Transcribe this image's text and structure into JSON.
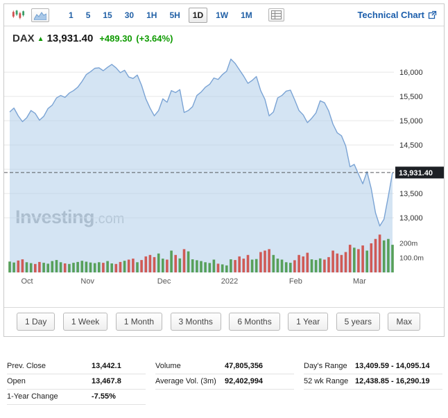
{
  "colors": {
    "positive": "#0e9a00",
    "link": "#1a5dab"
  },
  "toolbar": {
    "intervals": [
      "1",
      "5",
      "15",
      "30",
      "1H",
      "5H",
      "1D",
      "1W",
      "1M"
    ],
    "selected_interval": "1D",
    "technical_chart_label": "Technical Chart"
  },
  "header": {
    "symbol": "DAX",
    "price": "13,931.40",
    "change": "+489.30",
    "change_pct": "(+3.64%)"
  },
  "watermark": {
    "name": "Investing",
    "tld": ".com"
  },
  "ranges": [
    "1 Day",
    "1 Week",
    "1 Month",
    "3 Months",
    "6 Months",
    "1 Year",
    "5 years",
    "Max"
  ],
  "stats": {
    "col1": [
      {
        "label": "Prev. Close",
        "value": "13,442.1"
      },
      {
        "label": "Open",
        "value": "13,467.8"
      },
      {
        "label": "1-Year Change",
        "value": "-7.55%"
      }
    ],
    "col2": [
      {
        "label": "Volume",
        "value": "47,805,356"
      },
      {
        "label": "Average Vol. (3m)",
        "value": "92,402,994"
      }
    ],
    "col3": [
      {
        "label": "Day's Range",
        "value": "13,409.59 - 14,095.14"
      },
      {
        "label": "52 wk Range",
        "value": "12,438.85 - 16,290.19"
      }
    ]
  },
  "chart_data": {
    "type": "area",
    "symbol": "DAX",
    "x_labels": [
      {
        "i": 4,
        "label": "Oct"
      },
      {
        "i": 18,
        "label": "Nov"
      },
      {
        "i": 36,
        "label": "Dec"
      },
      {
        "i": 51,
        "label": "2022"
      },
      {
        "i": 67,
        "label": "Feb"
      },
      {
        "i": 82,
        "label": "Mar"
      }
    ],
    "y_ticks": [
      {
        "v": 16000,
        "label": "16,000"
      },
      {
        "v": 15500,
        "label": "15,500"
      },
      {
        "v": 15000,
        "label": "15,000"
      },
      {
        "v": 14500,
        "label": "14,500"
      },
      {
        "v": 14000,
        "label": null
      },
      {
        "v": 13500,
        "label": "13,500"
      },
      {
        "v": 13000,
        "label": "13,000"
      }
    ],
    "y_range_visible": [
      12650,
      16400
    ],
    "last_price": {
      "value": 13931.4,
      "label": "13,931.40"
    },
    "volume_ticks": [
      {
        "v": 200,
        "label": "200m"
      },
      {
        "v": 100,
        "label": "100.0m"
      }
    ],
    "prices": [
      15180,
      15260,
      15100,
      14980,
      15060,
      15210,
      15150,
      15010,
      15090,
      15250,
      15320,
      15470,
      15520,
      15480,
      15570,
      15620,
      15690,
      15810,
      15950,
      16010,
      16080,
      16090,
      16030,
      16100,
      16160,
      16090,
      15990,
      16040,
      15900,
      15870,
      15940,
      15730,
      15450,
      15260,
      15100,
      15210,
      15450,
      15380,
      15620,
      15580,
      15640,
      15170,
      15210,
      15290,
      15520,
      15590,
      15690,
      15750,
      15880,
      15850,
      15950,
      16020,
      16270,
      16180,
      16050,
      15920,
      15770,
      15830,
      15910,
      15620,
      15440,
      15100,
      15180,
      15470,
      15520,
      15610,
      15630,
      15430,
      15210,
      15120,
      14960,
      15050,
      15160,
      15410,
      15370,
      15200,
      14930,
      14750,
      14690,
      14480,
      14050,
      14100,
      13900,
      13700,
      13950,
      13600,
      13100,
      12830,
      12970,
      13440,
      13931.4
    ],
    "volumes_m": [
      75,
      68,
      82,
      90,
      70,
      64,
      58,
      72,
      66,
      60,
      78,
      85,
      70,
      62,
      58,
      66,
      72,
      80,
      74,
      68,
      64,
      70,
      66,
      78,
      62,
      58,
      72,
      80,
      88,
      95,
      70,
      85,
      110,
      120,
      105,
      130,
      95,
      88,
      150,
      120,
      96,
      160,
      145,
      90,
      84,
      78,
      70,
      65,
      88,
      60,
      55,
      48,
      90,
      85,
      110,
      95,
      120,
      88,
      92,
      140,
      150,
      160,
      120,
      95,
      88,
      70,
      66,
      84,
      120,
      110,
      135,
      90,
      85,
      96,
      88,
      105,
      150,
      130,
      120,
      140,
      190,
      170,
      160,
      185,
      150,
      200,
      230,
      260,
      220,
      230,
      190
    ],
    "colors": {
      "line": "#7aa3d4",
      "fill": "rgba(176,205,234,0.55)",
      "grid": "#e7e7e7",
      "volume_up": "#57a05a",
      "volume_down": "#cf5a56",
      "dashed_line": "#55585c",
      "tag_bg": "#1d2025",
      "tag_text": "#ffffff",
      "axis_text": "#2c2c2c",
      "month_text": "#555555"
    }
  }
}
